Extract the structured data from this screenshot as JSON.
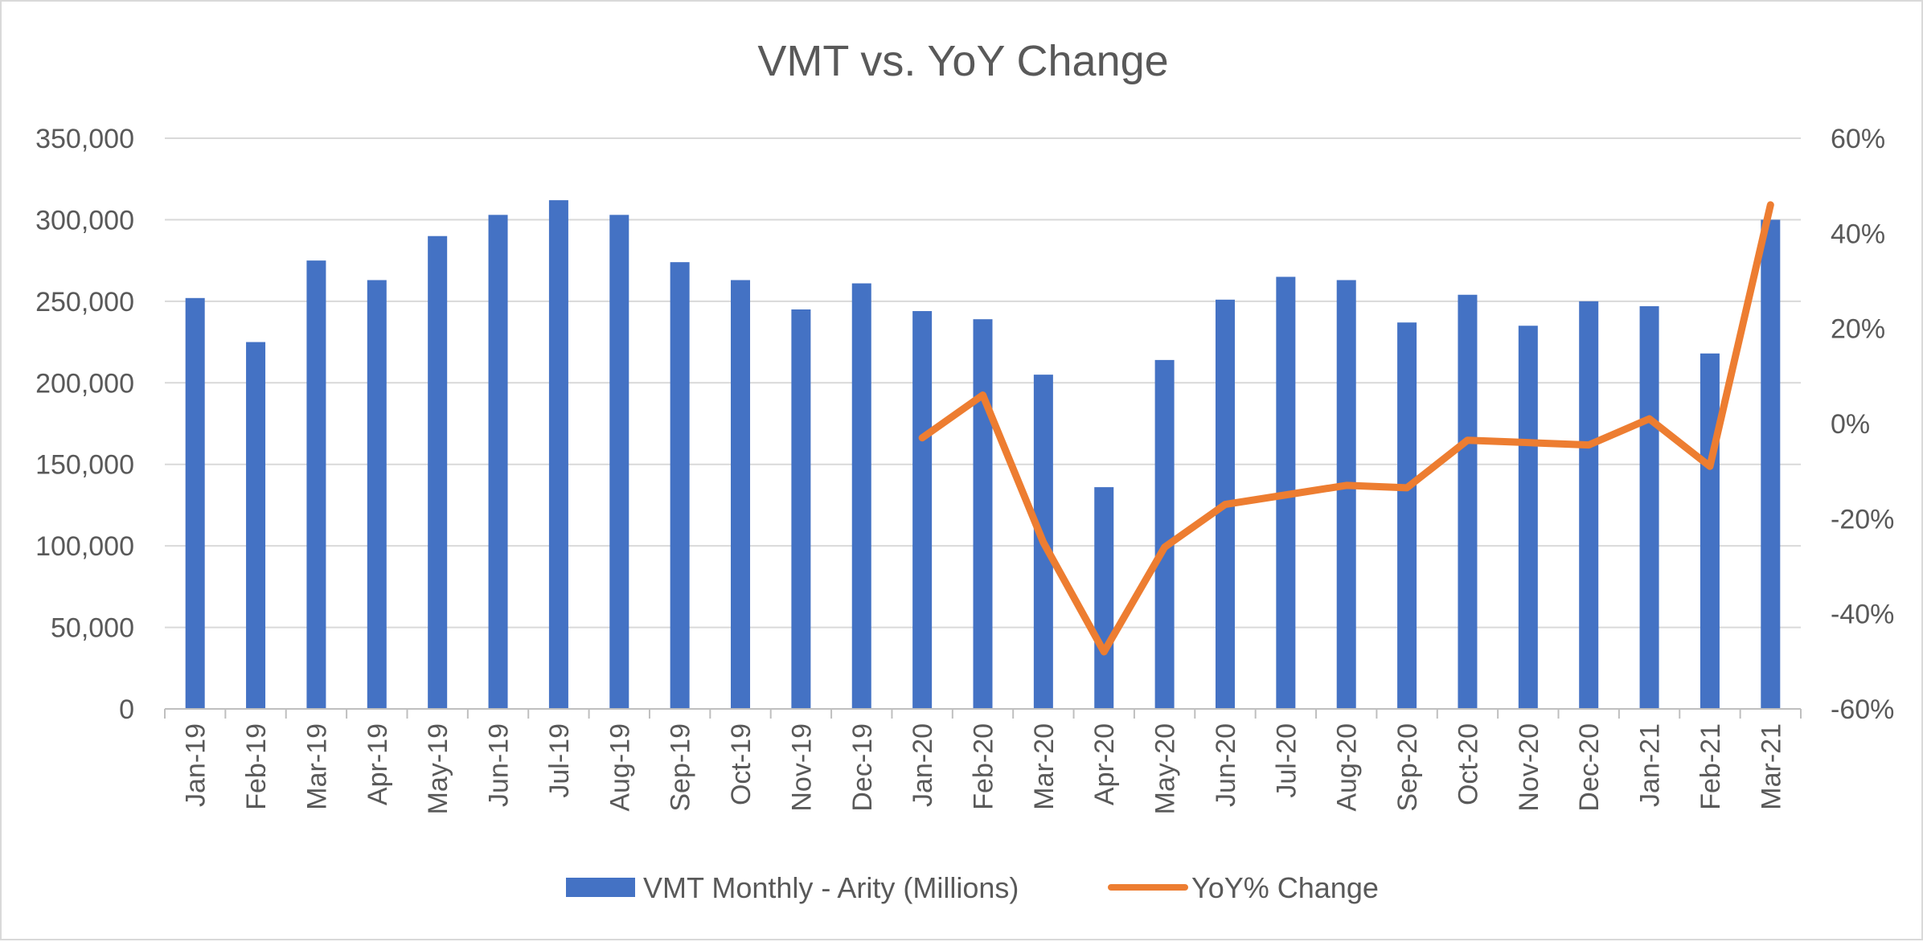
{
  "chart_data": {
    "type": "bar+line",
    "title": "VMT vs. YoY Change",
    "categories": [
      "Jan-19",
      "Feb-19",
      "Mar-19",
      "Apr-19",
      "May-19",
      "Jun-19",
      "Jul-19",
      "Aug-19",
      "Sep-19",
      "Oct-19",
      "Nov-19",
      "Dec-19",
      "Jan-20",
      "Feb-20",
      "Mar-20",
      "Apr-20",
      "May-20",
      "Jun-20",
      "Jul-20",
      "Aug-20",
      "Sep-20",
      "Oct-20",
      "Nov-20",
      "Dec-20",
      "Jan-21",
      "Feb-21",
      "Mar-21"
    ],
    "series": [
      {
        "name": "VMT Monthly - Arity (Millions)",
        "type": "bar",
        "axis": "left",
        "color": "#4472C4",
        "values": [
          252000,
          225000,
          275000,
          263000,
          290000,
          303000,
          312000,
          303000,
          274000,
          263000,
          245000,
          261000,
          244000,
          239000,
          205000,
          136000,
          214000,
          251000,
          265000,
          263000,
          237000,
          254000,
          235000,
          250000,
          247000,
          218000,
          300000
        ]
      },
      {
        "name": "YoY% Change",
        "type": "line",
        "axis": "right",
        "color": "#ED7D31",
        "values": [
          null,
          null,
          null,
          null,
          null,
          null,
          null,
          null,
          null,
          null,
          null,
          null,
          -3,
          6,
          -25,
          -48,
          -26,
          -17,
          -15,
          -13,
          -13.5,
          -3.5,
          -4,
          -4.5,
          1,
          -9,
          46
        ]
      }
    ],
    "left_axis": {
      "min": 0,
      "max": 350000,
      "step": 50000,
      "tick_labels": [
        "0",
        "50,000",
        "100,000",
        "150,000",
        "200,000",
        "250,000",
        "300,000",
        "350,000"
      ]
    },
    "right_axis": {
      "min": -60,
      "max": 60,
      "step": 20,
      "tick_labels": [
        "-60%",
        "-40%",
        "-20%",
        "0%",
        "20%",
        "40%",
        "60%"
      ]
    },
    "grid": true,
    "legend_position": "bottom"
  }
}
